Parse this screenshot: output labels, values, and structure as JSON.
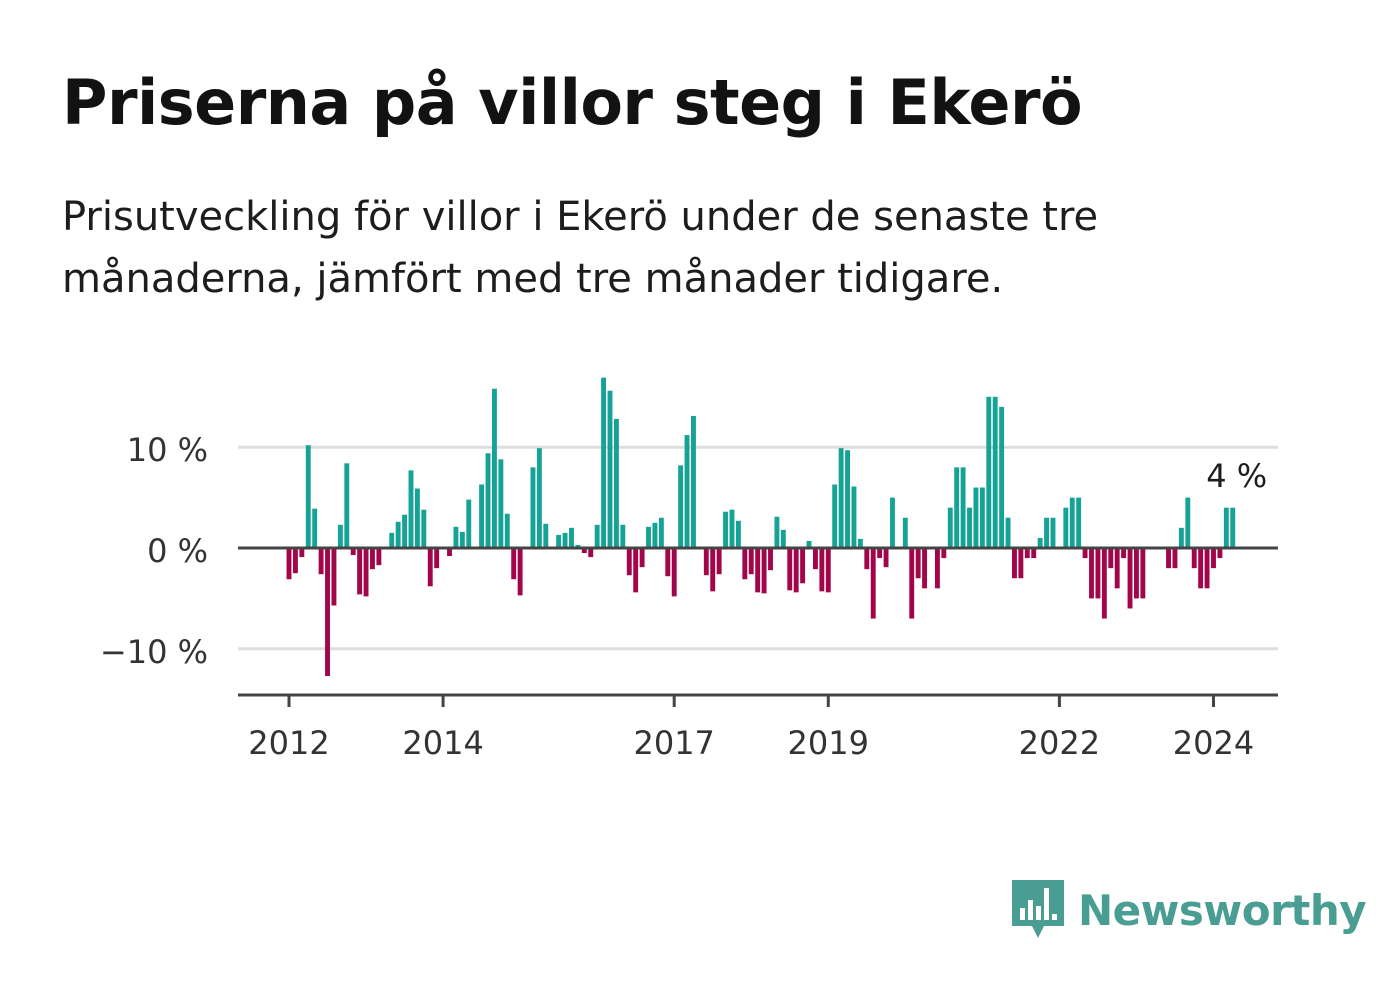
{
  "title": "Priserna på villor steg i Ekerö",
  "subtitle": "Prisutveckling för villor i Ekerö under de senaste tre månaderna, jämfört med tre månader tidigare.",
  "brand": {
    "name": "Newsworthy",
    "icon": "newsworthy-logo-icon",
    "color": "#4a9d93"
  },
  "chart_data": {
    "type": "bar",
    "x_start": "2012-01",
    "x_interval": "month",
    "y_unit": "%",
    "ylim": [
      -14.5,
      17.5
    ],
    "grid": true,
    "y_ticks": [
      {
        "value": 10,
        "label": "10 %"
      },
      {
        "value": 0,
        "label": "0 %"
      },
      {
        "value": -10,
        "label": "−10 %"
      }
    ],
    "x_ticks": [
      {
        "value": "2012-01",
        "label": "2012"
      },
      {
        "value": "2014-01",
        "label": "2014"
      },
      {
        "value": "2017-01",
        "label": "2017"
      },
      {
        "value": "2019-01",
        "label": "2019"
      },
      {
        "value": "2022-01",
        "label": "2022"
      },
      {
        "value": "2024-01",
        "label": "2024"
      }
    ],
    "colors": {
      "positive": "#14a396",
      "negative": "#a3054a",
      "axis": "#444444",
      "grid": "#dddddd"
    },
    "annotation": {
      "label": "4 %"
    },
    "values": [
      -3.1,
      -2.5,
      -0.9,
      10.2,
      3.9,
      -2.6,
      -12.7,
      -5.7,
      2.3,
      8.4,
      -0.7,
      -4.6,
      -4.8,
      -2.1,
      -1.7,
      0,
      1.5,
      2.6,
      3.3,
      7.7,
      5.9,
      3.8,
      -3.8,
      -2.0,
      0,
      -0.8,
      2.1,
      1.6,
      4.8,
      0,
      6.3,
      9.4,
      15.8,
      8.8,
      3.4,
      -3.1,
      -4.7,
      0,
      8.0,
      9.9,
      2.4,
      0,
      1.3,
      1.5,
      2.0,
      0.3,
      -0.5,
      -0.9,
      2.3,
      16.9,
      15.6,
      12.8,
      2.3,
      -2.7,
      -4.4,
      -1.9,
      2.1,
      2.5,
      3.0,
      -2.8,
      -4.8,
      8.2,
      11.2,
      13.1,
      0,
      -2.7,
      -4.3,
      -2.6,
      3.6,
      3.8,
      2.7,
      -3.1,
      -2.6,
      -4.4,
      -4.5,
      -2.2,
      3.1,
      1.8,
      -4.2,
      -4.4,
      -3.5,
      0.7,
      -2.1,
      -4.3,
      -4.4,
      6.3,
      9.9,
      9.7,
      6.1,
      0.9,
      -2.1,
      -7.0,
      -1.0,
      -1.9,
      5.0,
      0,
      3.0,
      -7.0,
      -3.0,
      -4.0,
      0,
      -4.0,
      -1.0,
      4.0,
      8.0,
      8.0,
      4.0,
      6.0,
      6.0,
      15.0,
      15.0,
      14.0,
      3.0,
      -3.0,
      -3.0,
      -1.0,
      -1.0,
      1.0,
      3.0,
      3.0,
      0,
      4.0,
      5.0,
      5.0,
      -1.0,
      -5.0,
      -5.0,
      -7.0,
      -2.0,
      -4.0,
      -1.0,
      -6.0,
      -5.0,
      -5.0,
      0,
      0,
      0,
      -2.0,
      -2.0,
      2.0,
      5.0,
      -2.0,
      -4.0,
      -4.0,
      -2.0,
      -1.0,
      4.0,
      4.0
    ]
  }
}
